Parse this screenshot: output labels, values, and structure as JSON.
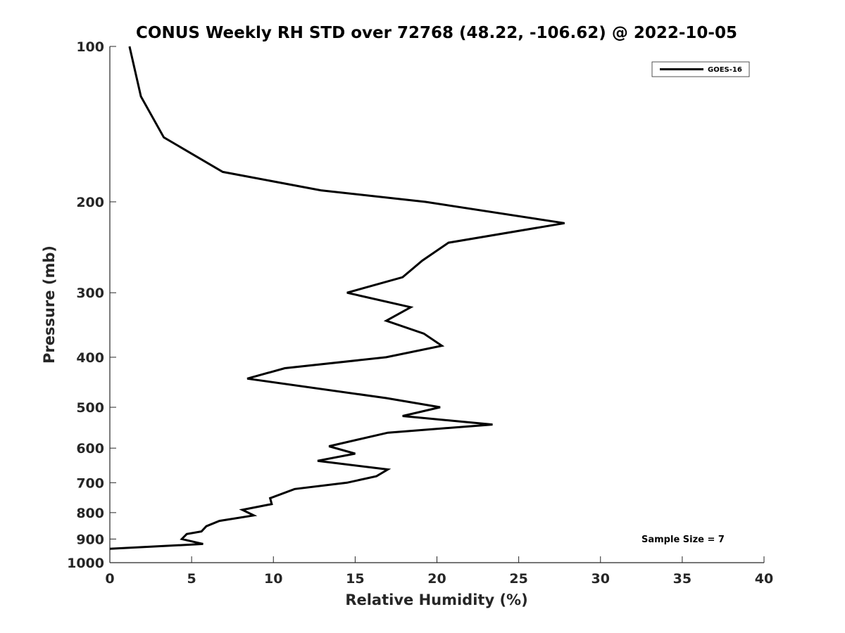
{
  "chart_data": {
    "type": "line",
    "title": "CONUS Weekly RH STD over 72768 (48.22, -106.62) @ 2022-10-05",
    "xlabel": "Relative Humidity (%)",
    "ylabel": "Pressure (mb)",
    "xlim": [
      0,
      40
    ],
    "ylim": [
      100,
      1000
    ],
    "y_scale": "log",
    "y_reversed": true,
    "x_ticks": [
      0,
      5,
      10,
      15,
      20,
      25,
      30,
      35,
      40
    ],
    "y_ticks": [
      100,
      200,
      300,
      400,
      500,
      600,
      700,
      800,
      900,
      1000
    ],
    "grid": false,
    "legend_position": "top-right",
    "series": [
      {
        "name": "GOES-16",
        "color": "#000000",
        "x": [
          1.2,
          1.9,
          3.3,
          6.9,
          12.9,
          19.3,
          27.8,
          20.7,
          19.1,
          17.9,
          14.5,
          18.4,
          16.9,
          19.2,
          20.3,
          16.9,
          10.7,
          8.4,
          16.9,
          20.2,
          17.9,
          23.4,
          17.0,
          13.4,
          15.0,
          12.7,
          17.0,
          16.3,
          14.5,
          11.3,
          9.8,
          9.9,
          8.1,
          8.8,
          6.7,
          5.9,
          5.6,
          4.7,
          4.4,
          5.7,
          0.0
        ],
        "y": [
          100,
          125,
          150,
          175,
          190,
          200,
          220,
          240,
          260,
          280,
          300,
          320,
          340,
          360,
          380,
          400,
          420,
          440,
          480,
          500,
          520,
          540,
          560,
          595,
          615,
          635,
          660,
          680,
          700,
          720,
          750,
          770,
          790,
          810,
          830,
          850,
          870,
          880,
          900,
          920,
          940
        ]
      }
    ],
    "annotations": [
      "Sample Size = 7"
    ]
  }
}
